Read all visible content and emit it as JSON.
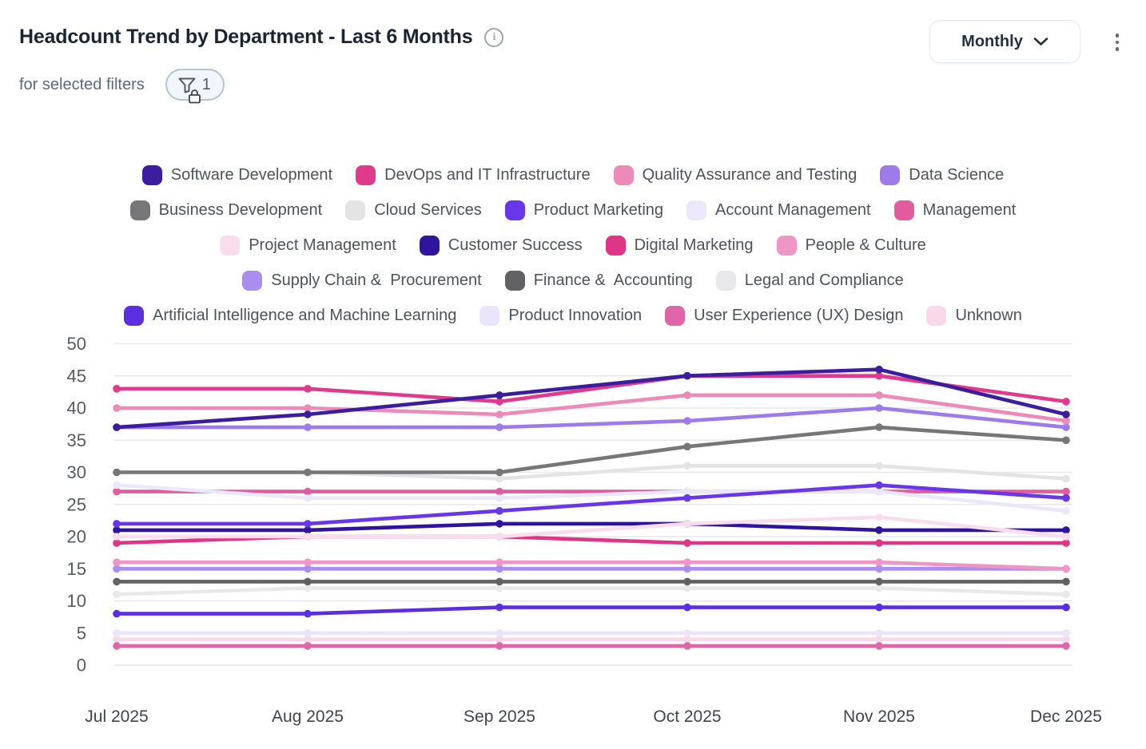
{
  "header": {
    "title": "Headcount Trend by Department - Last 6 Months",
    "subtitle": "for selected filters",
    "filter_count": "1",
    "period_selector": "Monthly"
  },
  "icons": {
    "info": "info-icon",
    "filter": "funnel-icon",
    "lock": "lock-icon",
    "chevron": "chevron-down-icon",
    "kebab": "kebab-menu-icon"
  },
  "legend_rows": [
    [
      0,
      1,
      2,
      3
    ],
    [
      4,
      5,
      6,
      7,
      8
    ],
    [
      9,
      10,
      11,
      12
    ],
    [
      13,
      14,
      15
    ],
    [
      16,
      17,
      18,
      19
    ]
  ],
  "chart_data": {
    "type": "line",
    "x": [
      "Jul 2025",
      "Aug 2025",
      "Sep 2025",
      "Oct 2025",
      "Nov 2025",
      "Dec 2025"
    ],
    "ylim": [
      0,
      50
    ],
    "yticks": [
      0,
      5,
      10,
      15,
      20,
      25,
      30,
      35,
      40,
      45,
      50
    ],
    "grid": "horizontal",
    "grid_color": "#e8e8ea",
    "legend_position": "top-center",
    "marker": "circle",
    "series": [
      {
        "name": "Software Development",
        "color": "#3b1d9e",
        "values": [
          37,
          39,
          42,
          45,
          46,
          39
        ]
      },
      {
        "name": "DevOps and IT Infrastructure",
        "color": "#e03a8c",
        "values": [
          43,
          43,
          41,
          45,
          45,
          41
        ]
      },
      {
        "name": "Quality Assurance and Testing",
        "color": "#ec8ab9",
        "values": [
          40,
          40,
          39,
          42,
          42,
          38
        ]
      },
      {
        "name": "Data Science",
        "color": "#9d7bea",
        "values": [
          37,
          37,
          37,
          38,
          40,
          37
        ]
      },
      {
        "name": "Business Development",
        "color": "#77777a",
        "values": [
          30,
          30,
          30,
          34,
          37,
          35
        ]
      },
      {
        "name": "Cloud Services",
        "color": "#e4e4e6",
        "values": [
          30,
          30,
          29,
          31,
          31,
          29
        ]
      },
      {
        "name": "Product Marketing",
        "color": "#6a36e9",
        "values": [
          22,
          22,
          24,
          26,
          28,
          26
        ]
      },
      {
        "name": "Account Management",
        "color": "#ece7fb",
        "values": [
          28,
          26,
          26,
          27,
          27,
          24
        ]
      },
      {
        "name": "Management",
        "color": "#e25b9e",
        "values": [
          27,
          27,
          27,
          27,
          27,
          27
        ]
      },
      {
        "name": "Project Management",
        "color": "#f9ddec",
        "values": [
          20,
          20,
          20,
          22,
          23,
          20
        ]
      },
      {
        "name": "Customer Success",
        "color": "#2f159d",
        "values": [
          21,
          21,
          22,
          22,
          21,
          21
        ]
      },
      {
        "name": "Digital Marketing",
        "color": "#df3587",
        "values": [
          19,
          20,
          20,
          19,
          19,
          19
        ]
      },
      {
        "name": "People & Culture",
        "color": "#ee96c5",
        "values": [
          16,
          16,
          16,
          16,
          16,
          15
        ]
      },
      {
        "name": "Supply Chain &  Procurement",
        "color": "#a98df0",
        "values": [
          15,
          15,
          15,
          15,
          15,
          15
        ]
      },
      {
        "name": "Finance &  Accounting",
        "color": "#626265",
        "values": [
          13,
          13,
          13,
          13,
          13,
          13
        ]
      },
      {
        "name": "Legal and Compliance",
        "color": "#e9e9eb",
        "values": [
          11,
          12,
          12,
          12,
          12,
          11
        ]
      },
      {
        "name": "Artificial Intelligence and Machine Learning",
        "color": "#5c2ee2",
        "values": [
          8,
          8,
          9,
          9,
          9,
          9
        ]
      },
      {
        "name": "Product Innovation",
        "color": "#ebe5fb",
        "values": [
          5,
          5,
          5,
          5,
          5,
          5
        ]
      },
      {
        "name": "User Experience (UX) Design",
        "color": "#df66a9",
        "values": [
          3,
          3,
          3,
          3,
          3,
          3
        ]
      },
      {
        "name": "Unknown",
        "color": "#f8d8e9",
        "values": [
          4,
          4,
          4,
          4,
          4,
          4
        ]
      }
    ]
  }
}
